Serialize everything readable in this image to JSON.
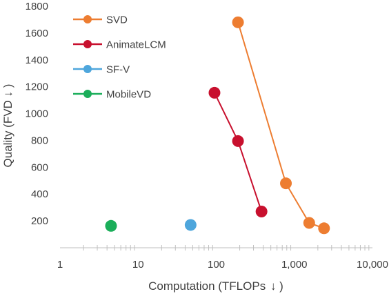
{
  "chart_data": {
    "type": "scatter",
    "xlabel": "Computation (TFLOPs",
    "xlabel_arrow": "↓",
    "xlabel_close": ")",
    "ylabel": "Quality (FVD",
    "ylabel_arrow": "↓",
    "ylabel_close": ")",
    "x_scale": "log",
    "xlim": [
      1,
      10000
    ],
    "ylim": [
      0,
      1800
    ],
    "x_ticks": [
      1,
      10,
      100,
      1000,
      10000
    ],
    "x_tick_labels": [
      "1",
      "10",
      "100",
      "1,000",
      "10,000"
    ],
    "y_ticks": [
      200,
      400,
      600,
      800,
      1000,
      1200,
      1400,
      1600,
      1800
    ],
    "y_tick_labels": [
      "200",
      "400",
      "600",
      "800",
      "1000",
      "1200",
      "1400",
      "1600",
      "1800"
    ],
    "grid": false,
    "legend": "top-left",
    "series": [
      {
        "name": "SVD",
        "color": "#ED7D31",
        "connect": true,
        "points": [
          [
            190,
            1680
          ],
          [
            780,
            480
          ],
          [
            1550,
            185
          ],
          [
            2400,
            145
          ]
        ]
      },
      {
        "name": "AnimateLCM",
        "color": "#C8102E",
        "connect": true,
        "points": [
          [
            95,
            1155
          ],
          [
            190,
            795
          ],
          [
            380,
            270
          ]
        ]
      },
      {
        "name": "SF-V",
        "color": "#4EA6DC",
        "connect": false,
        "points": [
          [
            47,
            170
          ]
        ]
      },
      {
        "name": "MobileVD",
        "color": "#1BAE5A",
        "connect": false,
        "points": [
          [
            4.5,
            163
          ]
        ]
      }
    ]
  }
}
